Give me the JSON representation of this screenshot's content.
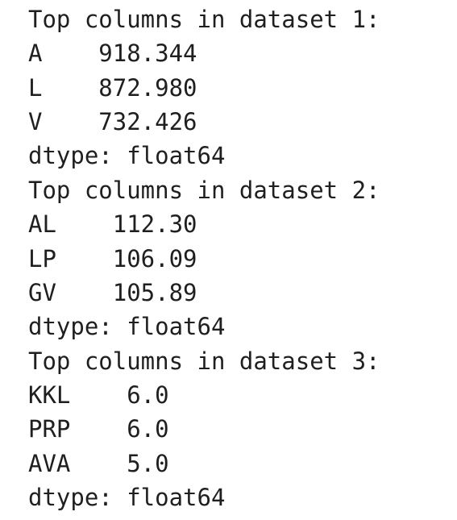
{
  "blocks": [
    {
      "title": "Top columns in dataset 1:",
      "rows": [
        [
          "A",
          "918.344"
        ],
        [
          "L",
          "872.980"
        ],
        [
          "V",
          "732.426"
        ]
      ],
      "dtype": "dtype: float64"
    },
    {
      "title": "Top columns in dataset 2:",
      "rows": [
        [
          "AL",
          "112.30"
        ],
        [
          "LP",
          "106.09"
        ],
        [
          "GV",
          "105.89"
        ]
      ],
      "dtype": "dtype: float64"
    },
    {
      "title": "Top columns in dataset 3:",
      "rows": [
        [
          "KKL",
          "6.0"
        ],
        [
          "PRP",
          "6.0"
        ],
        [
          "AVA",
          "5.0"
        ]
      ],
      "dtype": "dtype: float64"
    }
  ]
}
